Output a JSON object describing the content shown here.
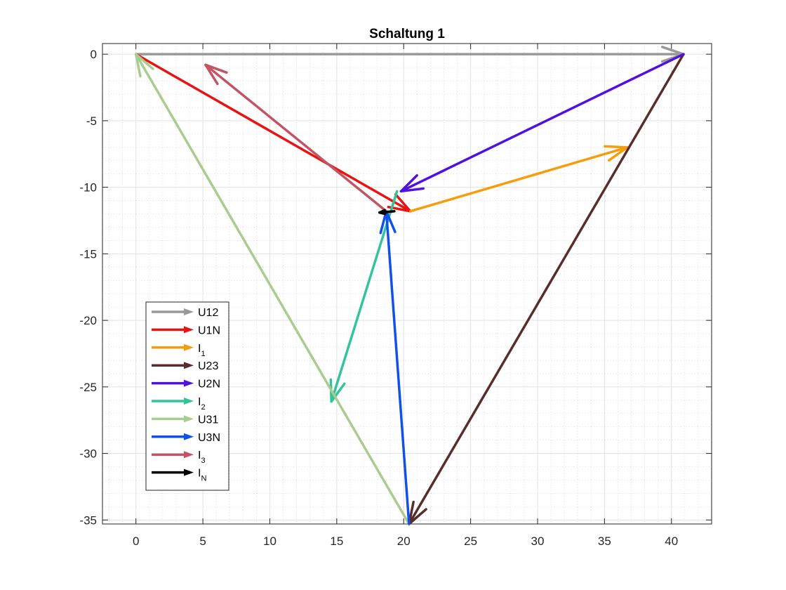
{
  "chart_data": {
    "type": "line",
    "title": "Schaltung 1",
    "xlabel": "",
    "ylabel": "",
    "xlim": [
      -2.5,
      43.0
    ],
    "ylim": [
      -35.3,
      0.8
    ],
    "xticks": [
      0,
      5,
      10,
      15,
      20,
      25,
      30,
      35,
      40
    ],
    "yticks": [
      0,
      -5,
      -10,
      -15,
      -20,
      -25,
      -30,
      -35
    ],
    "grid": true,
    "minor_grid": true,
    "legend_position": "lower-left",
    "series": [
      {
        "name": "U12",
        "label_main": "U12",
        "label_sub": "",
        "color": "#999999",
        "from": [
          0,
          0
        ],
        "to": [
          40.9,
          0
        ]
      },
      {
        "name": "U1N",
        "label_main": "U1N",
        "label_sub": "",
        "color": "#e81313",
        "from": [
          0,
          0
        ],
        "to": [
          20.5,
          -11.8
        ]
      },
      {
        "name": "I1",
        "label_main": "I",
        "label_sub": "1",
        "color": "#f79d0d",
        "from": [
          20.5,
          -11.8
        ],
        "to": [
          36.7,
          -7.0
        ]
      },
      {
        "name": "U23",
        "label_main": "U23",
        "label_sub": "",
        "color": "#5a2d2d",
        "from": [
          40.9,
          0
        ],
        "to": [
          20.4,
          -35.3
        ]
      },
      {
        "name": "U2N",
        "label_main": "U2N",
        "label_sub": "",
        "color": "#5010e0",
        "from": [
          40.9,
          0
        ],
        "to": [
          19.8,
          -10.3
        ]
      },
      {
        "name": "I2",
        "label_main": "I",
        "label_sub": "2",
        "color": "#34c49b",
        "from": [
          19.5,
          -10.3
        ],
        "to": [
          14.6,
          -26.1
        ]
      },
      {
        "name": "U31",
        "label_main": "U31",
        "label_sub": "",
        "color": "#a9cc8f",
        "from": [
          20.4,
          -35.3
        ],
        "to": [
          0,
          0
        ]
      },
      {
        "name": "U3N",
        "label_main": "U3N",
        "label_sub": "",
        "color": "#1151e8",
        "from": [
          20.4,
          -35.3
        ],
        "to": [
          18.7,
          -11.8
        ]
      },
      {
        "name": "I3",
        "label_main": "I",
        "label_sub": "3",
        "color": "#c35466",
        "from": [
          18.7,
          -11.8
        ],
        "to": [
          5.2,
          -0.8
        ]
      },
      {
        "name": "IN",
        "label_main": "I",
        "label_sub": "N",
        "color": "#000000",
        "from": [
          19.3,
          -11.8
        ],
        "to": [
          18.2,
          -11.9
        ]
      }
    ]
  }
}
